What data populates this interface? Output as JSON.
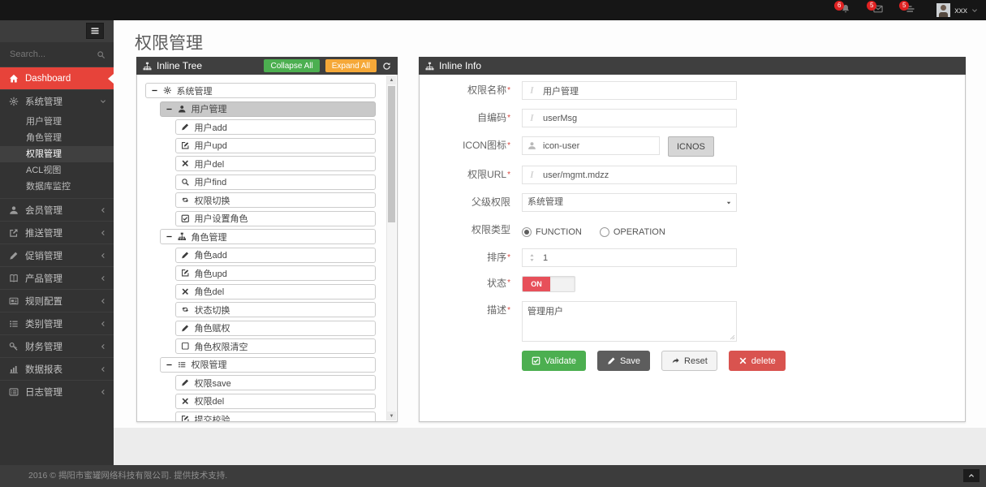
{
  "colors": {
    "accent_red": "#e7433a",
    "badge_red": "#e02222",
    "green": "#4caf50",
    "orange": "#f5a838",
    "dark_button": "#5d5d5d",
    "delete_red": "#d9534f",
    "toggle_on_red": "#e7505a",
    "panel_header": "#3f3f3f"
  },
  "topbar": {
    "notifications": [
      {
        "icon": "bell",
        "count": "6"
      },
      {
        "icon": "envelope",
        "count": "5"
      },
      {
        "icon": "tasks",
        "count": "5"
      }
    ],
    "user": {
      "name": "xxx"
    }
  },
  "sidebar": {
    "search_placeholder": "Search...",
    "items": [
      {
        "label": "Dashboard",
        "icon": "home",
        "variant": "red"
      },
      {
        "label": "系统管理",
        "icon": "gear",
        "expanded": true,
        "children": [
          {
            "label": "用户管理"
          },
          {
            "label": "角色管理"
          },
          {
            "label": "权限管理",
            "active": true
          },
          {
            "label": "ACL视图"
          },
          {
            "label": "数据库监控"
          }
        ]
      },
      {
        "label": "会员管理",
        "icon": "user",
        "collapsed": true
      },
      {
        "label": "推送管理",
        "icon": "share",
        "collapsed": true
      },
      {
        "label": "促销管理",
        "icon": "pencil",
        "collapsed": true
      },
      {
        "label": "产品管理",
        "icon": "book",
        "collapsed": true
      },
      {
        "label": "规则配置",
        "icon": "newspaper",
        "collapsed": true
      },
      {
        "label": "类别管理",
        "icon": "list",
        "collapsed": true
      },
      {
        "label": "财务管理",
        "icon": "key",
        "collapsed": true
      },
      {
        "label": "数据报表",
        "icon": "chart",
        "collapsed": true
      },
      {
        "label": "日志管理",
        "icon": "list-alt",
        "collapsed": true
      }
    ]
  },
  "page": {
    "title": "权限管理"
  },
  "tree_panel": {
    "title": "Inline Tree",
    "collapse_all": "Collapse All",
    "expand_all": "Expand All",
    "nodes": [
      {
        "level": 0,
        "branch": true,
        "icon": "gear",
        "label": "系统管理"
      },
      {
        "level": 1,
        "branch": true,
        "icon": "user",
        "label": "用户管理",
        "selected": true
      },
      {
        "level": 2,
        "icon": "pencil",
        "label": "用户add"
      },
      {
        "level": 2,
        "icon": "pencil-square",
        "label": "用户upd"
      },
      {
        "level": 2,
        "icon": "times",
        "label": "用户del"
      },
      {
        "level": 2,
        "icon": "search",
        "label": "用户find"
      },
      {
        "level": 2,
        "icon": "retweet",
        "label": "权限切换"
      },
      {
        "level": 2,
        "icon": "check-square",
        "label": "用户设置角色"
      },
      {
        "level": 1,
        "branch": true,
        "icon": "sitemap",
        "label": "角色管理"
      },
      {
        "level": 2,
        "icon": "pencil",
        "label": "角色add"
      },
      {
        "level": 2,
        "icon": "pencil-square",
        "label": "角色upd"
      },
      {
        "level": 2,
        "icon": "times",
        "label": "角色del"
      },
      {
        "level": 2,
        "icon": "retweet",
        "label": "状态切换"
      },
      {
        "level": 2,
        "icon": "pencil",
        "label": "角色赋权"
      },
      {
        "level": 2,
        "icon": "square-o",
        "label": "角色权限清空"
      },
      {
        "level": 1,
        "branch": true,
        "icon": "list",
        "label": "权限管理"
      },
      {
        "level": 2,
        "icon": "pencil",
        "label": "权限save"
      },
      {
        "level": 2,
        "icon": "times",
        "label": "权限del"
      },
      {
        "level": 2,
        "icon": "pencil-square",
        "label": "提交校验"
      }
    ]
  },
  "info_panel": {
    "title": "Inline Info",
    "fields": {
      "name": {
        "label": "权限名称",
        "required": "*",
        "value": "用户管理"
      },
      "code": {
        "label": "自编码",
        "required": "*",
        "value": "userMsg"
      },
      "icon": {
        "label": "ICON图标",
        "required": "*",
        "value": "icon-user",
        "button": "ICNOS"
      },
      "url": {
        "label": "权限URL",
        "required": "*",
        "value": "user/mgmt.mdzz"
      },
      "parent": {
        "label": "父级权限",
        "value": "系统管理"
      },
      "type": {
        "label": "权限类型",
        "options": [
          "FUNCTION",
          "OPERATION"
        ],
        "selected": "FUNCTION"
      },
      "sort": {
        "label": "排序",
        "required": "*",
        "value": "1"
      },
      "status": {
        "label": "状态",
        "required": "*",
        "value": "ON"
      },
      "desc": {
        "label": "描述",
        "required": "*",
        "value": "管理用户"
      }
    },
    "buttons": {
      "validate": "Validate",
      "save": "Save",
      "reset": "Reset",
      "delete": "delete"
    }
  },
  "footer": {
    "copyright": "2016 © 揭阳市蜜罐网络科技有限公司. 提供技术支持."
  }
}
